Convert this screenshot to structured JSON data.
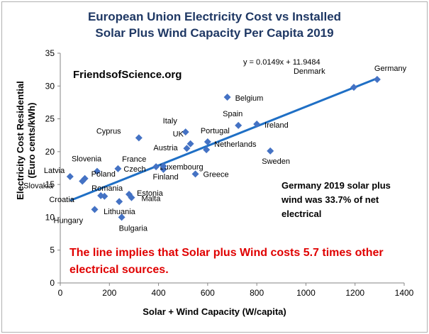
{
  "chart_data": {
    "type": "scatter",
    "title": "European Union Electricity Cost vs Installed",
    "subtitle": "Solar Plus Wind Capacity Per Capita 2019",
    "xlabel": "Solar + Wind Capacity (W/capita)",
    "ylabel_line1": "Electricity Cost Residential",
    "ylabel_line2": "(Euro cents/kWh)",
    "xlim": [
      0,
      1400
    ],
    "ylim": [
      0,
      35
    ],
    "xticks": [
      "0",
      "200",
      "400",
      "600",
      "800",
      "1000",
      "1200",
      "1400"
    ],
    "yticks": [
      "0",
      "5",
      "10",
      "15",
      "20",
      "25",
      "30",
      "35"
    ],
    "grid": false,
    "marker_color": "#4472c4",
    "trend_color": "#1f6fc5",
    "trendline": {
      "slope": 0.0149,
      "intercept": 11.9484,
      "x_start": 40,
      "x_end": 1290,
      "equation": "y = 0.0149x + 11.9484"
    },
    "points": [
      {
        "label": "Germany",
        "x": 1290,
        "y": 31.0
      },
      {
        "label": "Denmark",
        "x": 1195,
        "y": 29.8
      },
      {
        "label": "Belgium",
        "x": 680,
        "y": 28.3
      },
      {
        "label": "Spain",
        "x": 725,
        "y": 24.0
      },
      {
        "label": "Ireland",
        "x": 800,
        "y": 24.2
      },
      {
        "label": "Portugal",
        "x": 600,
        "y": 21.5
      },
      {
        "label": "Italy",
        "x": 510,
        "y": 23.0
      },
      {
        "label": "Cyprus",
        "x": 320,
        "y": 22.1
      },
      {
        "label": "UK",
        "x": 530,
        "y": 21.2
      },
      {
        "label": "Austria",
        "x": 515,
        "y": 20.5
      },
      {
        "label": "Netherlands",
        "x": 595,
        "y": 20.3
      },
      {
        "label": "Sweden",
        "x": 855,
        "y": 20.1
      },
      {
        "label": "France",
        "x": 390,
        "y": 17.7
      },
      {
        "label": "Luxembourg",
        "x": 420,
        "y": 17.3
      },
      {
        "label": "Finland",
        "x": 420,
        "y": 17.8
      },
      {
        "label": "Greece",
        "x": 550,
        "y": 16.6
      },
      {
        "label": "Czech",
        "x": 235,
        "y": 17.4
      },
      {
        "label": "Slovenia",
        "x": 150,
        "y": 17.0
      },
      {
        "label": "Latvia",
        "x": 40,
        "y": 16.2
      },
      {
        "label": "Poland",
        "x": 100,
        "y": 15.9
      },
      {
        "label": "Slovakia",
        "x": 90,
        "y": 15.5
      },
      {
        "label": "Romania",
        "x": 165,
        "y": 13.3
      },
      {
        "label": "Estonia",
        "x": 280,
        "y": 13.5
      },
      {
        "label": "Malta",
        "x": 290,
        "y": 13.0
      },
      {
        "label": "Croatia",
        "x": 180,
        "y": 13.2
      },
      {
        "label": "Lithuania",
        "x": 240,
        "y": 12.4
      },
      {
        "label": "Hungary",
        "x": 140,
        "y": 11.2
      },
      {
        "label": "Bulgaria",
        "x": 250,
        "y": 10.0
      }
    ]
  },
  "annotations": {
    "watermark": "FriendsofScience.org",
    "note": "Germany 2019 solar plus wind was 33.7% of net electrical",
    "claim": "The line implies that Solar plus Wind costs 5.7 times other electrical sources."
  }
}
